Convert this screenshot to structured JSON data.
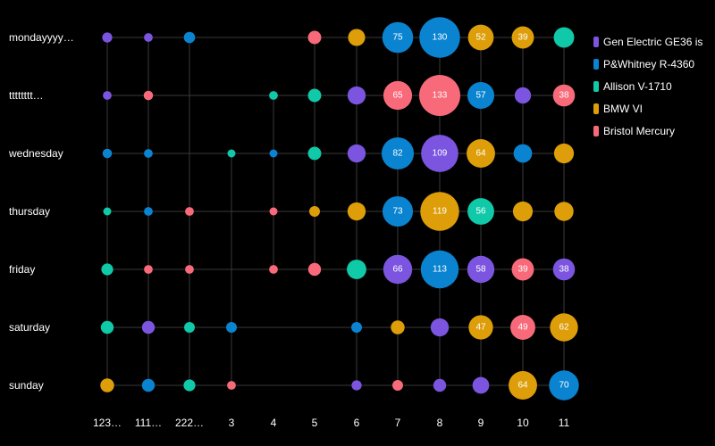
{
  "chart_data": {
    "type": "scatter",
    "subtype": "bubble-matrix",
    "columns": [
      "123…",
      "111…",
      "222…",
      "3",
      "4",
      "5",
      "6",
      "7",
      "8",
      "9",
      "10",
      "11"
    ],
    "rows": [
      "mondayyyy…",
      "tttttttt…",
      "wednesday",
      "thursday",
      "friday",
      "saturday",
      "sunday"
    ],
    "series_names": [
      "Gen Electric GE36 is",
      "P&Whitney R-4360",
      "Allison V-1710",
      "BMW VI",
      "Bristol Mercury"
    ],
    "colors": [
      "#7b55e0",
      "#0a84d0",
      "#10c9a8",
      "#dd9e0a",
      "#f86a7a"
    ],
    "legend_position": "right",
    "grid": true,
    "points": [
      {
        "row": 0,
        "col": 0,
        "s": 0,
        "v": 8
      },
      {
        "row": 0,
        "col": 1,
        "s": 0,
        "v": 6
      },
      {
        "row": 0,
        "col": 2,
        "s": 1,
        "v": 10
      },
      {
        "row": 0,
        "col": 5,
        "s": 4,
        "v": 14
      },
      {
        "row": 0,
        "col": 6,
        "s": 3,
        "v": 23
      },
      {
        "row": 0,
        "col": 7,
        "s": 1,
        "v": 75
      },
      {
        "row": 0,
        "col": 8,
        "s": 1,
        "v": 130
      },
      {
        "row": 0,
        "col": 9,
        "s": 3,
        "v": 52
      },
      {
        "row": 0,
        "col": 10,
        "s": 3,
        "v": 39
      },
      {
        "row": 0,
        "col": 11,
        "s": 2,
        "v": 33
      },
      {
        "row": 1,
        "col": 0,
        "s": 0,
        "v": 6
      },
      {
        "row": 1,
        "col": 1,
        "s": 4,
        "v": 7
      },
      {
        "row": 1,
        "col": 4,
        "s": 2,
        "v": 6
      },
      {
        "row": 1,
        "col": 5,
        "s": 2,
        "v": 14
      },
      {
        "row": 1,
        "col": 6,
        "s": 0,
        "v": 26
      },
      {
        "row": 1,
        "col": 7,
        "s": 4,
        "v": 65
      },
      {
        "row": 1,
        "col": 8,
        "s": 4,
        "v": 133
      },
      {
        "row": 1,
        "col": 9,
        "s": 1,
        "v": 57
      },
      {
        "row": 1,
        "col": 10,
        "s": 0,
        "v": 21
      },
      {
        "row": 1,
        "col": 11,
        "s": 4,
        "v": 38
      },
      {
        "row": 2,
        "col": 0,
        "s": 1,
        "v": 7
      },
      {
        "row": 2,
        "col": 1,
        "s": 1,
        "v": 6
      },
      {
        "row": 2,
        "col": 3,
        "s": 2,
        "v": 5
      },
      {
        "row": 2,
        "col": 4,
        "s": 1,
        "v": 5
      },
      {
        "row": 2,
        "col": 5,
        "s": 2,
        "v": 14
      },
      {
        "row": 2,
        "col": 6,
        "s": 0,
        "v": 26
      },
      {
        "row": 2,
        "col": 7,
        "s": 1,
        "v": 82
      },
      {
        "row": 2,
        "col": 8,
        "s": 0,
        "v": 109
      },
      {
        "row": 2,
        "col": 9,
        "s": 3,
        "v": 64
      },
      {
        "row": 2,
        "col": 10,
        "s": 1,
        "v": 27
      },
      {
        "row": 2,
        "col": 11,
        "s": 3,
        "v": 31
      },
      {
        "row": 3,
        "col": 0,
        "s": 2,
        "v": 5
      },
      {
        "row": 3,
        "col": 1,
        "s": 1,
        "v": 6
      },
      {
        "row": 3,
        "col": 2,
        "s": 4,
        "v": 6
      },
      {
        "row": 3,
        "col": 4,
        "s": 4,
        "v": 5
      },
      {
        "row": 3,
        "col": 5,
        "s": 3,
        "v": 9
      },
      {
        "row": 3,
        "col": 6,
        "s": 3,
        "v": 26
      },
      {
        "row": 3,
        "col": 7,
        "s": 1,
        "v": 73
      },
      {
        "row": 3,
        "col": 8,
        "s": 3,
        "v": 119
      },
      {
        "row": 3,
        "col": 9,
        "s": 2,
        "v": 56
      },
      {
        "row": 3,
        "col": 10,
        "s": 3,
        "v": 31
      },
      {
        "row": 3,
        "col": 11,
        "s": 3,
        "v": 29
      },
      {
        "row": 4,
        "col": 0,
        "s": 2,
        "v": 11
      },
      {
        "row": 4,
        "col": 1,
        "s": 4,
        "v": 6
      },
      {
        "row": 4,
        "col": 2,
        "s": 4,
        "v": 6
      },
      {
        "row": 4,
        "col": 4,
        "s": 4,
        "v": 6
      },
      {
        "row": 4,
        "col": 5,
        "s": 4,
        "v": 13
      },
      {
        "row": 4,
        "col": 6,
        "s": 2,
        "v": 30
      },
      {
        "row": 4,
        "col": 7,
        "s": 0,
        "v": 66
      },
      {
        "row": 4,
        "col": 8,
        "s": 1,
        "v": 113
      },
      {
        "row": 4,
        "col": 9,
        "s": 0,
        "v": 58
      },
      {
        "row": 4,
        "col": 10,
        "s": 4,
        "v": 39
      },
      {
        "row": 4,
        "col": 11,
        "s": 0,
        "v": 38
      },
      {
        "row": 5,
        "col": 0,
        "s": 2,
        "v": 13
      },
      {
        "row": 5,
        "col": 1,
        "s": 0,
        "v": 13
      },
      {
        "row": 5,
        "col": 2,
        "s": 2,
        "v": 9
      },
      {
        "row": 5,
        "col": 3,
        "s": 1,
        "v": 9
      },
      {
        "row": 5,
        "col": 6,
        "s": 1,
        "v": 9
      },
      {
        "row": 5,
        "col": 7,
        "s": 3,
        "v": 15
      },
      {
        "row": 5,
        "col": 8,
        "s": 0,
        "v": 26
      },
      {
        "row": 5,
        "col": 9,
        "s": 3,
        "v": 47
      },
      {
        "row": 5,
        "col": 10,
        "s": 4,
        "v": 49
      },
      {
        "row": 5,
        "col": 11,
        "s": 3,
        "v": 62
      },
      {
        "row": 6,
        "col": 0,
        "s": 3,
        "v": 15
      },
      {
        "row": 6,
        "col": 1,
        "s": 1,
        "v": 13
      },
      {
        "row": 6,
        "col": 2,
        "s": 2,
        "v": 11
      },
      {
        "row": 6,
        "col": 3,
        "s": 4,
        "v": 6
      },
      {
        "row": 6,
        "col": 6,
        "s": 0,
        "v": 8
      },
      {
        "row": 6,
        "col": 7,
        "s": 4,
        "v": 9
      },
      {
        "row": 6,
        "col": 8,
        "s": 0,
        "v": 13
      },
      {
        "row": 6,
        "col": 9,
        "s": 0,
        "v": 22
      },
      {
        "row": 6,
        "col": 10,
        "s": 3,
        "v": 64
      },
      {
        "row": 6,
        "col": 11,
        "s": 1,
        "v": 70
      }
    ],
    "shown_value_labels": [
      {
        "row": 0,
        "col": 7
      },
      {
        "row": 0,
        "col": 8
      },
      {
        "row": 0,
        "col": 9
      },
      {
        "row": 0,
        "col": 10
      },
      {
        "row": 1,
        "col": 7
      },
      {
        "row": 1,
        "col": 8
      },
      {
        "row": 1,
        "col": 9
      },
      {
        "row": 1,
        "col": 11
      },
      {
        "row": 2,
        "col": 7
      },
      {
        "row": 2,
        "col": 8
      },
      {
        "row": 2,
        "col": 9
      },
      {
        "row": 3,
        "col": 7
      },
      {
        "row": 3,
        "col": 8
      },
      {
        "row": 3,
        "col": 9
      },
      {
        "row": 4,
        "col": 7
      },
      {
        "row": 4,
        "col": 8
      },
      {
        "row": 4,
        "col": 9
      },
      {
        "row": 4,
        "col": 10
      },
      {
        "row": 4,
        "col": 11
      },
      {
        "row": 5,
        "col": 9
      },
      {
        "row": 5,
        "col": 10
      },
      {
        "row": 5,
        "col": 11
      },
      {
        "row": 6,
        "col": 10
      },
      {
        "row": 6,
        "col": 11
      }
    ]
  }
}
